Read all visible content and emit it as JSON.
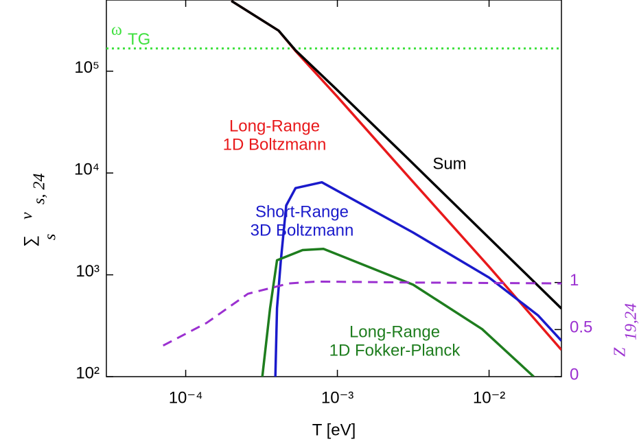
{
  "chart_data": {
    "type": "line",
    "xlabel": "T [eV]",
    "ylabel": {
      "symbol": "∑",
      "below": "s",
      "main": "ν",
      "sub": "s, 24"
    },
    "y2label": {
      "main": "Z",
      "sub": "19,24"
    },
    "xscale": "log",
    "yscale": "log",
    "xlim": [
      3e-05,
      0.03
    ],
    "ylim": [
      100,
      500000
    ],
    "y2lim": [
      0,
      4
    ],
    "xticks": [
      {
        "value": 0.0001,
        "label": "10⁻⁴"
      },
      {
        "value": 0.001,
        "label": "10⁻³"
      },
      {
        "value": 0.01,
        "label": "10⁻²"
      }
    ],
    "yticks": [
      {
        "value": 100,
        "label": "10²"
      },
      {
        "value": 1000,
        "label": "10³"
      },
      {
        "value": 10000,
        "label": "10⁴"
      },
      {
        "value": 100000,
        "label": "10⁵"
      }
    ],
    "y2ticks": [
      0,
      0.5,
      1
    ],
    "y2color": "#9b30d0",
    "hline": {
      "value": 167000,
      "label": {
        "main": "ω",
        "sub": "TG"
      },
      "color": "#3ee03e"
    },
    "series": [
      {
        "color": "#e8191b",
        "x": [
          0.0002,
          0.00041,
          0.00053,
          0.001,
          0.003,
          0.01,
          0.03
        ],
        "values": [
          490000,
          250000,
          158000,
          56000,
          8900,
          1200,
          183
        ]
      },
      {
        "color": "#000000",
        "x": [
          0.0002,
          0.00041,
          0.00053,
          0.001,
          0.003,
          0.01,
          0.03
        ],
        "values": [
          490000,
          250000,
          160000,
          65000,
          13300,
          2300,
          467
        ]
      },
      {
        "color": "#1a1acb",
        "x": [
          0.00039,
          0.0004,
          0.000424,
          0.00046,
          0.00053,
          0.00079,
          0.00316,
          0.01,
          0.021,
          0.03
        ],
        "values": [
          100,
          470,
          1390,
          4800,
          7100,
          8100,
          2600,
          940,
          400,
          225
        ]
      },
      {
        "color": "#1e7d1e",
        "x": [
          0.00032,
          0.00036,
          0.0004,
          0.00059,
          0.00081,
          0.00316,
          0.009,
          0.0197
        ],
        "values": [
          100,
          470,
          1390,
          1750,
          1800,
          800,
          293,
          100
        ]
      },
      {
        "color": "#9b30d0",
        "axis": "y2",
        "dash": true,
        "x": [
          7.1e-05,
          0.000137,
          0.000257,
          0.00048,
          0.00073,
          0.00316,
          0.03
        ],
        "values": [
          0.33,
          0.57,
          0.88,
          0.99,
          1.01,
          1.0,
          0.99
        ]
      }
    ],
    "annotations": [
      {
        "series": 0,
        "lines": [
          "Long-Range",
          "1D Boltzmann"
        ]
      },
      {
        "series": 1,
        "lines": [
          "Sum"
        ]
      },
      {
        "series": 2,
        "lines": [
          "Short-Range",
          "3D Boltzmann"
        ]
      },
      {
        "series": 3,
        "lines": [
          "Long-Range",
          "1D Fokker-Planck"
        ]
      }
    ]
  }
}
